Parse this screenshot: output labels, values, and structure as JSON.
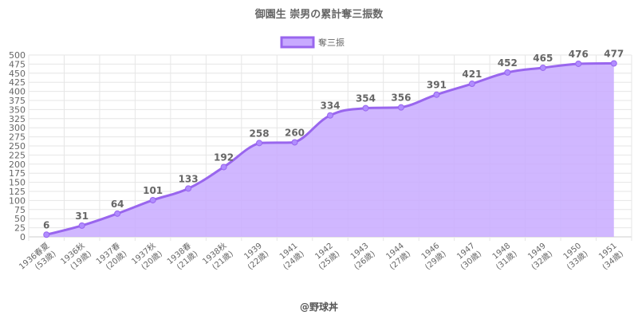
{
  "chart_data": {
    "type": "area",
    "title": "御園生 崇男の累計奪三振数",
    "legend": {
      "position": "top",
      "label": "奪三振"
    },
    "colors": {
      "line": "#9966ee",
      "fill": "#c8aaff",
      "point": "#b08cff"
    },
    "ylim": [
      0,
      500
    ],
    "ystep": 25,
    "grid": true,
    "categories": [
      [
        "1936春夏",
        "(53歳)"
      ],
      [
        "1936秋",
        "(19歳)"
      ],
      [
        "1937春",
        "(20歳)"
      ],
      [
        "1937秋",
        "(20歳)"
      ],
      [
        "1938春",
        "(21歳)"
      ],
      [
        "1938秋",
        "(21歳)"
      ],
      [
        "1939",
        "(22歳)"
      ],
      [
        "1941",
        "(24歳)"
      ],
      [
        "1942",
        "(25歳)"
      ],
      [
        "1943",
        "(26歳)"
      ],
      [
        "1944",
        "(27歳)"
      ],
      [
        "1946",
        "(29歳)"
      ],
      [
        "1947",
        "(30歳)"
      ],
      [
        "1948",
        "(31歳)"
      ],
      [
        "1949",
        "(32歳)"
      ],
      [
        "1950",
        "(33歳)"
      ],
      [
        "1951",
        "(34歳)"
      ]
    ],
    "series": [
      {
        "name": "奪三振",
        "values": [
          6,
          31,
          64,
          101,
          133,
          192,
          258,
          260,
          334,
          354,
          356,
          391,
          421,
          452,
          465,
          476,
          477
        ]
      }
    ]
  },
  "footer": "@野球丼"
}
